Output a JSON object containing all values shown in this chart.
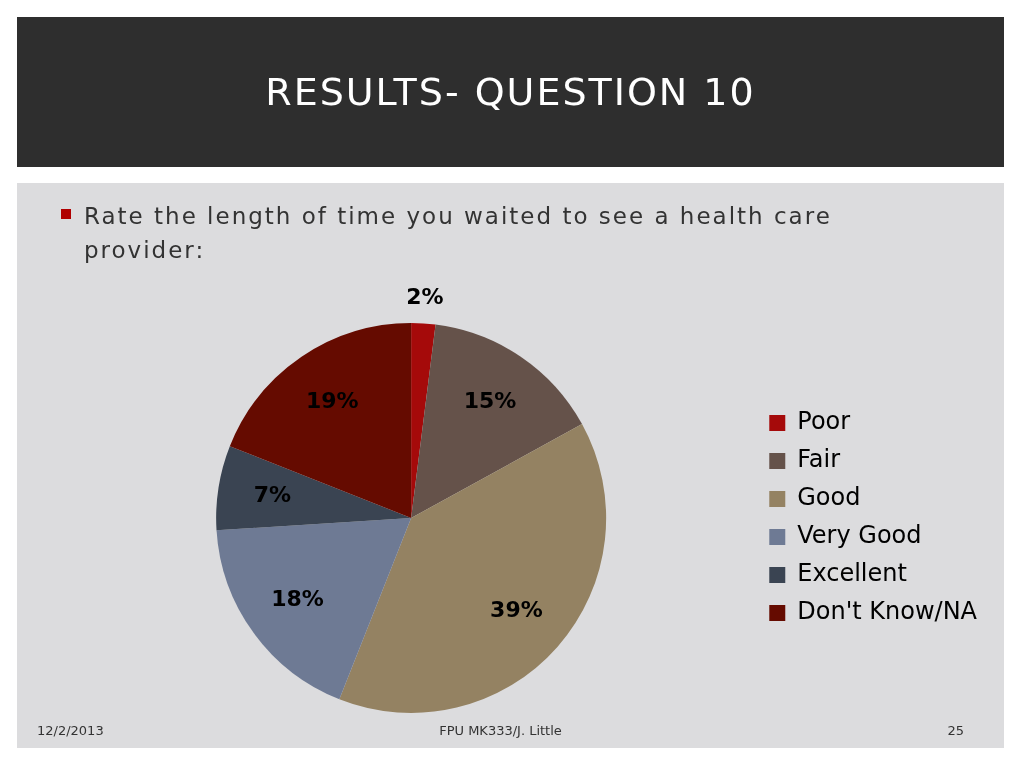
{
  "chart_data": {
    "type": "pie",
    "title": "RESULTS- QUESTION 10",
    "subtitle": "Rate the length of time you waited to see a health care provider:",
    "categories": [
      "Poor",
      "Fair",
      "Good",
      "Very Good",
      "Excellent",
      "Don't Know/NA"
    ],
    "values": [
      2,
      15,
      39,
      18,
      7,
      19
    ],
    "value_labels": [
      "2%",
      "15%",
      "39%",
      "18%",
      "7%",
      "19%"
    ],
    "colors": [
      "#a50a0a",
      "#65524a",
      "#948262",
      "#6e7a94",
      "#3a4452",
      "#650b00"
    ],
    "legend": "right",
    "annotations": [
      "12/2/2013",
      "FPU MK333/J. Little",
      "25"
    ]
  }
}
